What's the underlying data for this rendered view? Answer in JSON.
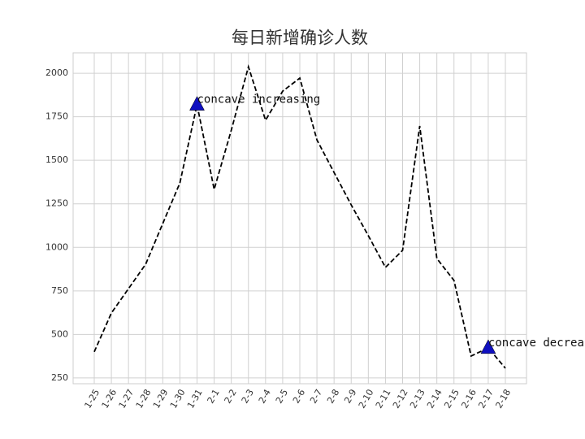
{
  "chart_data": {
    "type": "line",
    "title": "每日新增确诊人数",
    "categories": [
      "1-25",
      "1-26",
      "1-27",
      "1-28",
      "1-29",
      "1-30",
      "1-31",
      "2-1",
      "2-2",
      "2-3",
      "2-4",
      "2-5",
      "2-6",
      "2-7",
      "2-8",
      "2-9",
      "2-10",
      "2-11",
      "2-12",
      "2-13",
      "2-14",
      "2-15",
      "2-16",
      "2-17",
      "2-18"
    ],
    "values": [
      400,
      623,
      763,
      903,
      1137,
      1370,
      1820,
      1333,
      1673,
      2037,
      1730,
      1897,
      1972,
      1617,
      1430,
      1244,
      1067,
      885,
      983,
      1697,
      936,
      810,
      376,
      423,
      306
    ],
    "color": "#000000",
    "line_style": "dashed",
    "ylim": [
      217,
      2117
    ],
    "yticks": [
      250,
      500,
      750,
      1000,
      1250,
      1500,
      1750,
      2000
    ],
    "grid": true,
    "annotations": [
      {
        "text": "concave increasing",
        "x": "1-31",
        "y": 1820,
        "marker_color": "#1010c0"
      },
      {
        "text": "concave decreasing",
        "x": "2-17",
        "y": 423,
        "marker_color": "#1010c0"
      }
    ]
  }
}
